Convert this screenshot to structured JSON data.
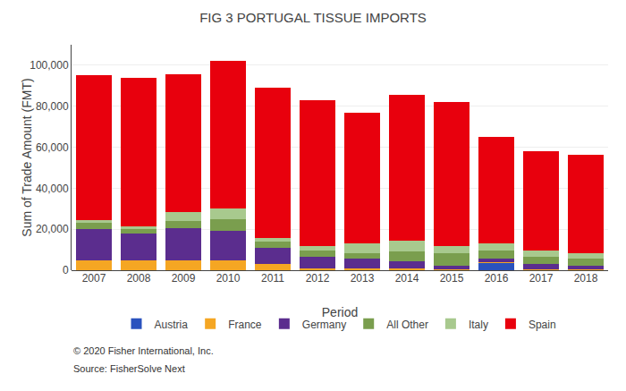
{
  "chart_data": {
    "type": "bar",
    "stacked": true,
    "title": "FIG 3 PORTUGAL TISSUE IMPORTS",
    "xlabel": "Period",
    "ylabel": "Sum of Trade Amount (FMT)",
    "categories": [
      "2007",
      "2008",
      "2009",
      "2010",
      "2011",
      "2012",
      "2013",
      "2014",
      "2015",
      "2016",
      "2017",
      "2018"
    ],
    "series": [
      {
        "name": "Austria",
        "color": "#2a52be",
        "values": [
          0,
          0,
          0,
          0,
          0,
          0,
          0,
          0,
          0,
          3500,
          0,
          0
        ]
      },
      {
        "name": "France",
        "color": "#f5a623",
        "values": [
          5000,
          5000,
          5000,
          5000,
          3000,
          1000,
          1000,
          1000,
          500,
          500,
          500,
          500
        ]
      },
      {
        "name": "Germany",
        "color": "#5b2d8e",
        "values": [
          15000,
          13000,
          15500,
          14000,
          8000,
          5500,
          4500,
          3500,
          1500,
          1500,
          2500,
          1500
        ]
      },
      {
        "name": "All Other",
        "color": "#7a9e4e",
        "values": [
          3000,
          2000,
          3500,
          6000,
          3000,
          3000,
          3000,
          4500,
          6500,
          4000,
          3500,
          3500
        ]
      },
      {
        "name": "Italy",
        "color": "#a8c98e",
        "values": [
          1500,
          1500,
          4500,
          5000,
          1500,
          2500,
          4500,
          5500,
          3500,
          3500,
          3000,
          3000
        ]
      },
      {
        "name": "Spain",
        "color": "#e8000d",
        "values": [
          70500,
          72500,
          67000,
          72000,
          73500,
          71000,
          64000,
          71000,
          70000,
          52000,
          48500,
          48000
        ]
      }
    ],
    "ylim": [
      0,
      110000
    ],
    "yticks": [
      0,
      {
        "value": 20000,
        "label": "20,000"
      },
      {
        "value": 40000,
        "label": "40,000"
      },
      {
        "value": 60000,
        "label": "60,000"
      },
      {
        "value": 80000,
        "label": "80,000"
      },
      {
        "value": 100000,
        "label": "100,000"
      }
    ],
    "grid": true,
    "legend": "bottom",
    "annotations": [
      "© 2020 Fisher International, Inc.",
      "Source: FisherSolve Next"
    ]
  }
}
